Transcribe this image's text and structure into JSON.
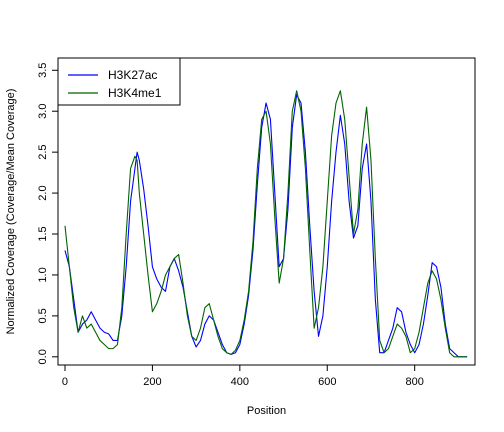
{
  "chart_data": {
    "type": "line",
    "title": "",
    "xlabel": "Position",
    "ylabel": "Normalized Coverage (Coverage/Mean Coverage)",
    "xlim": [
      -16,
      938
    ],
    "ylim": [
      -0.1,
      3.65
    ],
    "xticks": [
      0,
      200,
      400,
      600,
      800
    ],
    "yticks": [
      0.0,
      0.5,
      1.0,
      1.5,
      2.0,
      2.5,
      3.0,
      3.5
    ],
    "grid": false,
    "legend_position": "top-left",
    "series": [
      {
        "name": "H3K27ac",
        "color": "#0000ff",
        "x": [
          0,
          10,
          20,
          30,
          40,
          50,
          60,
          70,
          80,
          90,
          100,
          110,
          120,
          130,
          140,
          150,
          160,
          165,
          170,
          180,
          190,
          200,
          210,
          220,
          230,
          240,
          250,
          260,
          270,
          280,
          290,
          300,
          310,
          320,
          330,
          340,
          350,
          360,
          370,
          380,
          390,
          400,
          410,
          420,
          430,
          440,
          450,
          460,
          470,
          480,
          490,
          500,
          510,
          520,
          530,
          540,
          550,
          560,
          570,
          580,
          590,
          600,
          610,
          620,
          630,
          640,
          650,
          660,
          670,
          680,
          690,
          700,
          710,
          720,
          730,
          740,
          750,
          760,
          770,
          780,
          790,
          800,
          810,
          820,
          830,
          840,
          850,
          860,
          870,
          880,
          890,
          900,
          910,
          920
        ],
        "y": [
          1.3,
          1.1,
          0.7,
          0.3,
          0.4,
          0.45,
          0.55,
          0.45,
          0.35,
          0.3,
          0.28,
          0.2,
          0.2,
          0.5,
          1.1,
          1.9,
          2.3,
          2.5,
          2.4,
          2.05,
          1.6,
          1.1,
          0.95,
          0.85,
          0.8,
          1.1,
          1.2,
          1.05,
          0.85,
          0.55,
          0.25,
          0.12,
          0.2,
          0.4,
          0.5,
          0.45,
          0.3,
          0.15,
          0.05,
          0.03,
          0.05,
          0.15,
          0.4,
          0.75,
          1.3,
          2.1,
          2.8,
          3.1,
          2.9,
          2.0,
          1.1,
          1.2,
          1.8,
          2.8,
          3.2,
          3.1,
          2.5,
          1.6,
          0.8,
          0.25,
          0.5,
          1.1,
          1.9,
          2.5,
          2.95,
          2.6,
          1.9,
          1.45,
          1.6,
          2.3,
          2.6,
          1.9,
          0.7,
          0.05,
          0.05,
          0.2,
          0.35,
          0.6,
          0.55,
          0.3,
          0.15,
          0.05,
          0.15,
          0.4,
          0.75,
          1.15,
          1.1,
          0.85,
          0.4,
          0.1,
          0.05,
          0.0,
          0.0,
          0.0
        ],
        "x_override": null
      },
      {
        "name": "H3K4me1",
        "color": "#006400",
        "x": [
          0,
          10,
          20,
          30,
          40,
          50,
          60,
          70,
          80,
          90,
          100,
          110,
          120,
          130,
          140,
          150,
          160,
          165,
          170,
          180,
          190,
          200,
          210,
          220,
          230,
          240,
          250,
          260,
          270,
          280,
          290,
          300,
          310,
          320,
          330,
          340,
          350,
          360,
          370,
          380,
          390,
          400,
          410,
          420,
          430,
          440,
          450,
          460,
          470,
          480,
          490,
          500,
          510,
          520,
          530,
          540,
          550,
          560,
          570,
          580,
          590,
          600,
          610,
          620,
          630,
          640,
          650,
          660,
          670,
          680,
          690,
          700,
          710,
          720,
          730,
          740,
          750,
          760,
          770,
          780,
          790,
          800,
          810,
          820,
          830,
          840,
          850,
          860,
          870,
          880,
          890,
          900,
          910,
          920
        ],
        "y": [
          1.6,
          1.1,
          0.6,
          0.3,
          0.5,
          0.35,
          0.4,
          0.3,
          0.2,
          0.15,
          0.1,
          0.1,
          0.15,
          0.6,
          1.5,
          2.3,
          2.45,
          2.4,
          2.0,
          1.5,
          1.0,
          0.55,
          0.65,
          0.8,
          1.0,
          1.1,
          1.2,
          1.25,
          0.9,
          0.5,
          0.25,
          0.2,
          0.35,
          0.6,
          0.65,
          0.45,
          0.25,
          0.1,
          0.05,
          0.03,
          0.08,
          0.2,
          0.45,
          0.8,
          1.4,
          2.3,
          2.9,
          3.0,
          2.6,
          1.7,
          0.9,
          1.2,
          2.0,
          3.0,
          3.25,
          3.0,
          2.3,
          1.3,
          0.35,
          0.6,
          1.1,
          1.9,
          2.7,
          3.1,
          3.25,
          2.9,
          2.2,
          1.5,
          1.8,
          2.6,
          3.05,
          2.4,
          1.2,
          0.2,
          0.05,
          0.1,
          0.25,
          0.4,
          0.35,
          0.25,
          0.05,
          0.1,
          0.3,
          0.6,
          0.9,
          1.05,
          0.95,
          0.7,
          0.35,
          0.05,
          0.0,
          0.0,
          0.0,
          0.0
        ],
        "x_override": null
      }
    ]
  }
}
